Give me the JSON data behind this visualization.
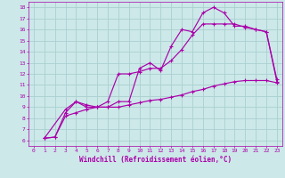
{
  "xlabel": "Windchill (Refroidissement éolien,°C)",
  "bg_color": "#cce8e8",
  "grid_color": "#aad0d0",
  "line_color": "#aa00aa",
  "xlim": [
    -0.5,
    23.5
  ],
  "ylim": [
    5.5,
    18.5
  ],
  "xticks": [
    0,
    1,
    2,
    3,
    4,
    5,
    6,
    7,
    8,
    9,
    10,
    11,
    12,
    13,
    14,
    15,
    16,
    17,
    18,
    19,
    20,
    21,
    22,
    23
  ],
  "yticks": [
    6,
    7,
    8,
    9,
    10,
    11,
    12,
    13,
    14,
    15,
    16,
    17,
    18
  ],
  "line1_x": [
    1,
    2,
    3,
    4,
    5,
    6,
    7,
    8,
    9,
    10,
    11,
    12,
    13,
    14,
    15,
    16,
    17,
    18,
    19,
    20,
    21,
    22,
    23
  ],
  "line1_y": [
    6.2,
    6.3,
    8.5,
    9.5,
    9.2,
    9.0,
    9.0,
    9.5,
    9.5,
    12.5,
    13.0,
    12.3,
    14.5,
    16.0,
    15.8,
    17.5,
    18.0,
    17.5,
    16.3,
    16.3,
    16.0,
    15.8,
    11.3
  ],
  "line2_x": [
    1,
    3,
    4,
    5,
    6,
    7,
    8,
    9,
    10,
    11,
    12,
    13,
    14,
    15,
    16,
    17,
    18,
    19,
    20,
    21,
    22,
    23
  ],
  "line2_y": [
    6.2,
    8.8,
    9.5,
    9.0,
    9.0,
    9.5,
    12.0,
    12.0,
    12.2,
    12.5,
    12.5,
    13.2,
    14.2,
    15.5,
    16.5,
    16.5,
    16.5,
    16.5,
    16.2,
    16.0,
    15.8,
    11.5
  ],
  "line3_x": [
    1,
    2,
    3,
    4,
    5,
    6,
    7,
    8,
    9,
    10,
    11,
    12,
    13,
    14,
    15,
    16,
    17,
    18,
    19,
    20,
    21,
    22,
    23
  ],
  "line3_y": [
    6.2,
    6.3,
    8.2,
    8.5,
    8.8,
    9.0,
    9.0,
    9.0,
    9.2,
    9.4,
    9.6,
    9.7,
    9.9,
    10.1,
    10.4,
    10.6,
    10.9,
    11.1,
    11.3,
    11.4,
    11.4,
    11.4,
    11.2
  ]
}
